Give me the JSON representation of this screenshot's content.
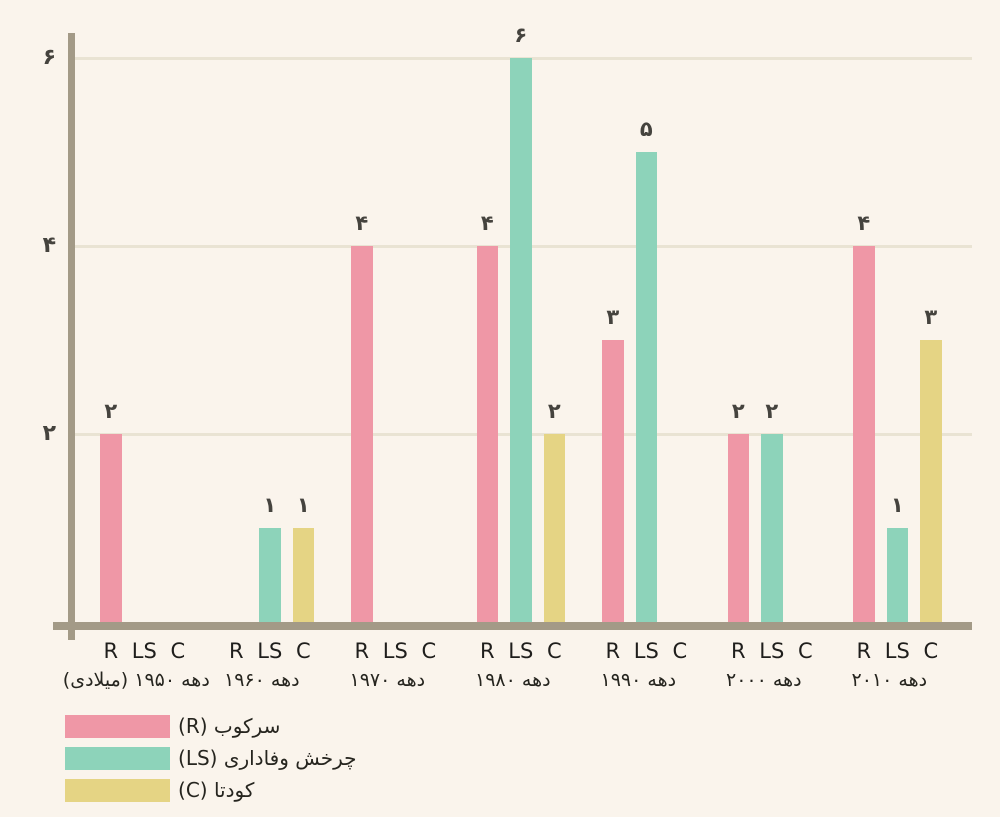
{
  "background": "#faf4ec",
  "chart_data": {
    "type": "bar",
    "title": "",
    "categories": [
      "دهه ۱۹۵۰ (میلادی)",
      "دهه ۱۹۶۰",
      "دهه ۱۹۷۰",
      "دهه ۱۹۸۰",
      "دهه ۱۹۹۰",
      "دهه ۲۰۰۰",
      "دهه ۲۰۱۰"
    ],
    "slot_labels": [
      "R",
      "LS",
      "C"
    ],
    "series": [
      {
        "name": "سرکوب (R)",
        "key": "R",
        "color": "#ef97a6",
        "values": [
          2,
          0,
          4,
          4,
          3,
          2,
          4
        ]
      },
      {
        "name": "چرخش وفاداری (LS)",
        "key": "LS",
        "color": "#8dd3ba",
        "values": [
          0,
          1,
          0,
          6,
          5,
          2,
          1
        ]
      },
      {
        "name": "کودتا (C)",
        "key": "C",
        "color": "#e5d484",
        "values": [
          0,
          1,
          0,
          2,
          0,
          0,
          3
        ]
      }
    ],
    "y_ticks": [
      {
        "value": 2,
        "label": "۲"
      },
      {
        "value": 4,
        "label": "۴"
      },
      {
        "value": 6,
        "label": "۶"
      }
    ],
    "ylim": [
      0,
      6.3
    ],
    "grid": "horizontal",
    "legend_position": "bottom-left",
    "value_label_digits": "۰۱۲۳۴۵۶۷۸۹",
    "colors": {
      "background": "#faf4ec",
      "axis": "#a39a87",
      "gridline": "#e9e3d3",
      "tick_text": "#45433e",
      "bar_label_text": "#45433e",
      "slot_letter_text": "#1f1e1c",
      "category_text": "#26251f",
      "legend_text": "#26251f"
    }
  }
}
